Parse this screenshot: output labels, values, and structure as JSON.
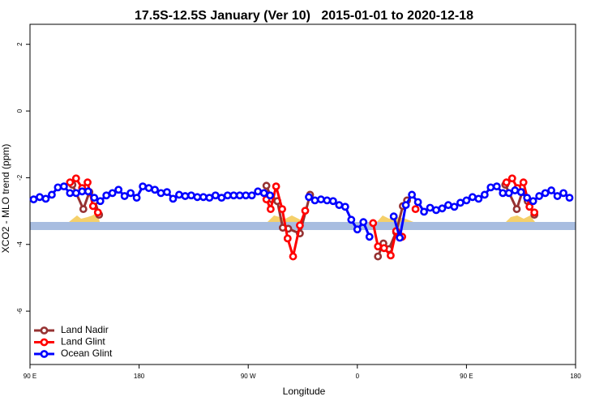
{
  "chart_data": {
    "type": "line",
    "title": "17.5S-12.5S January (Ver 10)   2015-01-01 to 2020-12-18",
    "x_label": "Longitude",
    "y_label": "XCO2 - MLO trend (ppm)",
    "xlim": [
      90,
      540
    ],
    "ylim": [
      -7.6,
      2.6
    ],
    "xticks": [
      {
        "value": 90,
        "label": "90 E"
      },
      180,
      {
        "value": 270,
        "label": "90 W"
      },
      {
        "value": 360,
        "label": "0"
      },
      {
        "value": 450,
        "label": "90 E"
      },
      {
        "value": 540,
        "label": "180"
      }
    ],
    "yticks": [
      2,
      0,
      -2,
      -4,
      -6
    ],
    "legend": "bottom-left",
    "series": [
      {
        "name": "Land Nadir",
        "color": "#963232",
        "x": [
          125,
          134,
          139,
          143.5,
          147,
          null,
          285,
          289.5,
          294,
          298.5,
          303,
          312.6,
          321,
          null,
          377,
          381.5,
          386,
          392,
          397.5,
          401,
          null,
          482,
          491.5,
          496,
          500.5,
          506
        ],
        "values": [
          -2.21,
          -2.94,
          -2.43,
          -2.7,
          -3.11,
          null,
          -2.24,
          -2.65,
          -2.7,
          -3.5,
          -3.53,
          -3.67,
          -2.51,
          null,
          -4.36,
          -3.97,
          -4.14,
          -3.63,
          -2.85,
          -2.68,
          null,
          -2.21,
          -2.94,
          -2.43,
          -2.7,
          -3.11
        ]
      },
      {
        "name": "Land Glint",
        "color": "#ff0000",
        "x": [
          123,
          128,
          133,
          137.5,
          142,
          146,
          null,
          285,
          288.5,
          293,
          298,
          302.5,
          307,
          312.6,
          317,
          null,
          373,
          377,
          382,
          387.5,
          392,
          397,
          null,
          408,
          null,
          483,
          487.7,
          492,
          497,
          502,
          506
        ],
        "values": [
          -2.14,
          -2.02,
          -2.31,
          -2.14,
          -2.85,
          -3.04,
          null,
          -2.65,
          -2.94,
          -2.26,
          -2.94,
          -3.82,
          -4.36,
          -3.43,
          -2.99,
          null,
          -3.36,
          -4.06,
          -4.11,
          -4.33,
          -3.6,
          -3.77,
          null,
          -2.94,
          null,
          -2.14,
          -2.02,
          -2.31,
          -2.14,
          -2.87,
          -3.04
        ]
      },
      {
        "name": "Ocean Glint",
        "color": "#0000ff",
        "x": [
          93,
          98,
          103,
          108,
          113,
          118,
          123,
          128,
          133,
          138,
          143,
          148,
          153,
          158,
          163,
          168,
          173,
          178,
          183,
          188,
          193,
          198,
          203,
          208,
          213,
          218,
          223,
          228,
          233,
          238,
          243,
          248,
          253,
          258,
          263,
          268,
          273,
          278,
          283,
          288,
          null,
          320,
          325,
          330,
          335,
          340,
          345,
          350,
          355,
          360,
          365,
          370,
          null,
          390,
          395,
          400,
          405,
          410,
          415,
          420,
          425,
          430,
          435,
          440,
          445,
          450,
          455,
          460,
          465,
          470,
          475,
          480,
          485,
          490,
          495,
          500,
          505,
          510,
          515,
          520,
          525,
          530,
          535
        ],
        "values": [
          -2.65,
          -2.58,
          -2.63,
          -2.51,
          -2.29,
          -2.26,
          -2.46,
          -2.46,
          -2.41,
          -2.41,
          -2.6,
          -2.7,
          -2.53,
          -2.46,
          -2.36,
          -2.55,
          -2.46,
          -2.6,
          -2.26,
          -2.31,
          -2.36,
          -2.46,
          -2.43,
          -2.63,
          -2.51,
          -2.55,
          -2.53,
          -2.58,
          -2.58,
          -2.6,
          -2.53,
          -2.6,
          -2.53,
          -2.53,
          -2.53,
          -2.53,
          -2.53,
          -2.41,
          -2.46,
          -2.53,
          null,
          -2.58,
          -2.68,
          -2.65,
          -2.68,
          -2.7,
          -2.82,
          -2.87,
          -3.26,
          -3.55,
          -3.33,
          -3.77,
          null,
          -3.16,
          -3.8,
          -2.82,
          -2.51,
          -2.73,
          -3.02,
          -2.9,
          -2.97,
          -2.92,
          -2.82,
          -2.87,
          -2.75,
          -2.68,
          -2.58,
          -2.63,
          -2.51,
          -2.29,
          -2.26,
          -2.46,
          -2.46,
          -2.38,
          -2.43,
          -2.6,
          -2.7,
          -2.55,
          -2.46,
          -2.38,
          -2.55,
          -2.46,
          -2.6
        ]
      }
    ]
  }
}
